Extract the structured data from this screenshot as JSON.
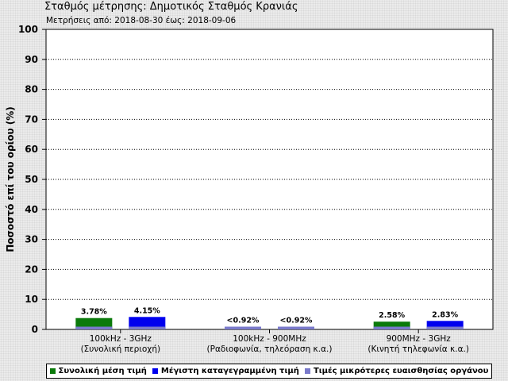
{
  "header": {
    "title": "Σταθμός μέτρησης: Δημοτικός Σταθμός Κρανιάς",
    "subtitle": "Μετρήσεις από: 2018-08-30 έως: 2018-09-06"
  },
  "colors": {
    "average": "#0b7a0b",
    "maximum": "#0000ee",
    "below_sensitivity": "#7a7acb"
  },
  "legend": {
    "average": "Συνολική μέση τιμή",
    "maximum": "Μέγιστη καταγεγραμμένη τιμή",
    "below_sensitivity": "Τιμές μικρότερες ευαισθησίας οργάνου"
  },
  "chart_data": {
    "type": "bar",
    "title": "",
    "xlabel": "",
    "ylabel": "Ποσοστό επί του ορίου (%)",
    "ylim": [
      0,
      100
    ],
    "yticks": [
      0,
      10,
      20,
      30,
      40,
      50,
      60,
      70,
      80,
      90,
      100
    ],
    "grid": true,
    "legend_position": "bottom",
    "categories": [
      [
        "100kHz - 3GHz",
        "(Συνολική περιοχή)"
      ],
      [
        "100kHz - 900MHz",
        "(Ραδιοφωνία, τηλεόραση κ.α.)"
      ],
      [
        "900MHz - 3GHz",
        "(Κινητή τηλεφωνία κ.α.)"
      ]
    ],
    "series": [
      {
        "name": "Συνολική μέση τιμή",
        "key": "average",
        "values": [
          3.78,
          0.92,
          2.58
        ],
        "labels": [
          "3.78%",
          "<0.92%",
          "2.58%"
        ],
        "below_sensitivity": [
          false,
          true,
          false
        ]
      },
      {
        "name": "Μέγιστη καταγεγραμμένη τιμή",
        "key": "maximum",
        "values": [
          4.15,
          0.92,
          2.83
        ],
        "labels": [
          "4.15%",
          "<0.92%",
          "2.83%"
        ],
        "below_sensitivity": [
          false,
          true,
          false
        ]
      }
    ],
    "sensitivity_floor": 0.92
  }
}
